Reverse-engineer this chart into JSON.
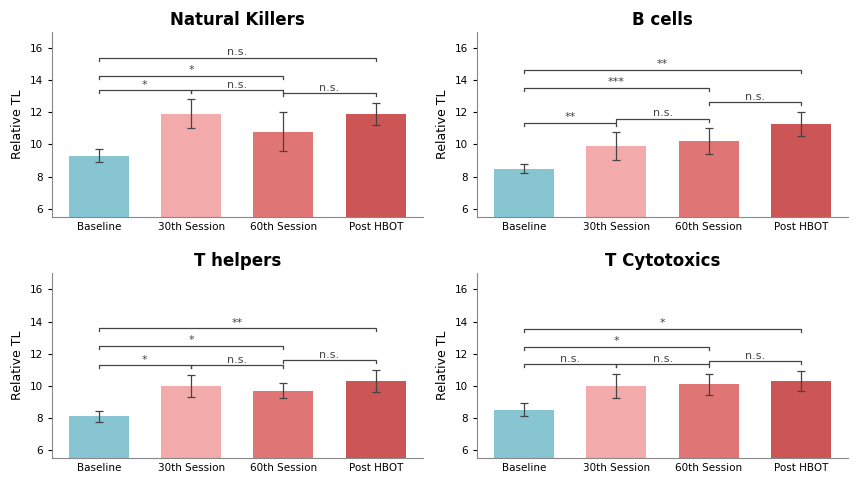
{
  "subplots": [
    {
      "title": "Natural Killers",
      "values": [
        9.3,
        11.9,
        10.8,
        11.9
      ],
      "errors": [
        0.4,
        0.9,
        1.2,
        0.7
      ],
      "annotations": [
        {
          "i": 0,
          "j": 1,
          "label": "*",
          "type": "adjacent"
        },
        {
          "i": 1,
          "j": 2,
          "label": "n.s.",
          "type": "adjacent"
        },
        {
          "i": 2,
          "j": 3,
          "label": "n.s.",
          "type": "adjacent"
        },
        {
          "i": 0,
          "j": 2,
          "label": "*",
          "type": "mid"
        },
        {
          "i": 0,
          "j": 3,
          "label": "n.s.",
          "type": "long"
        }
      ]
    },
    {
      "title": "B cells",
      "values": [
        8.5,
        9.9,
        10.2,
        11.3
      ],
      "errors": [
        0.3,
        0.85,
        0.8,
        0.75
      ],
      "annotations": [
        {
          "i": 0,
          "j": 1,
          "label": "**",
          "type": "adjacent"
        },
        {
          "i": 1,
          "j": 2,
          "label": "n.s.",
          "type": "adjacent"
        },
        {
          "i": 2,
          "j": 3,
          "label": "n.s.",
          "type": "adjacent"
        },
        {
          "i": 0,
          "j": 2,
          "label": "***",
          "type": "mid"
        },
        {
          "i": 0,
          "j": 3,
          "label": "**",
          "type": "long"
        }
      ]
    },
    {
      "title": "T helpers",
      "values": [
        8.1,
        10.0,
        9.7,
        10.3
      ],
      "errors": [
        0.35,
        0.7,
        0.45,
        0.7
      ],
      "annotations": [
        {
          "i": 0,
          "j": 1,
          "label": "*",
          "type": "adjacent"
        },
        {
          "i": 1,
          "j": 2,
          "label": "n.s.",
          "type": "adjacent"
        },
        {
          "i": 2,
          "j": 3,
          "label": "n.s.",
          "type": "adjacent"
        },
        {
          "i": 0,
          "j": 2,
          "label": "*",
          "type": "mid"
        },
        {
          "i": 0,
          "j": 3,
          "label": "**",
          "type": "long"
        }
      ]
    },
    {
      "title": "T Cytotoxics",
      "values": [
        8.5,
        10.0,
        10.1,
        10.3
      ],
      "errors": [
        0.4,
        0.75,
        0.65,
        0.65
      ],
      "annotations": [
        {
          "i": 0,
          "j": 1,
          "label": "n.s.",
          "type": "adjacent"
        },
        {
          "i": 1,
          "j": 2,
          "label": "n.s.",
          "type": "adjacent"
        },
        {
          "i": 2,
          "j": 3,
          "label": "n.s.",
          "type": "adjacent"
        },
        {
          "i": 0,
          "j": 2,
          "label": "*",
          "type": "mid"
        },
        {
          "i": 0,
          "j": 3,
          "label": "*",
          "type": "long"
        }
      ]
    }
  ],
  "categories": [
    "Baseline",
    "30th Session",
    "60th Session",
    "Post HBOT"
  ],
  "bar_colors": [
    "#87C5D2",
    "#F2AAAA",
    "#E07575",
    "#CC5555"
  ],
  "ylabel": "Relative TL",
  "ylim": [
    5.5,
    17.0
  ],
  "yticks": [
    6,
    8,
    10,
    12,
    14,
    16
  ],
  "background_color": "#ffffff",
  "error_color": "#444444",
  "annotation_color": "#444444",
  "title_fontsize": 12,
  "tick_fontsize": 7.5,
  "ylabel_fontsize": 9,
  "bar_width": 0.65,
  "bracket_lw": 0.9,
  "ann_fontsize": 8
}
